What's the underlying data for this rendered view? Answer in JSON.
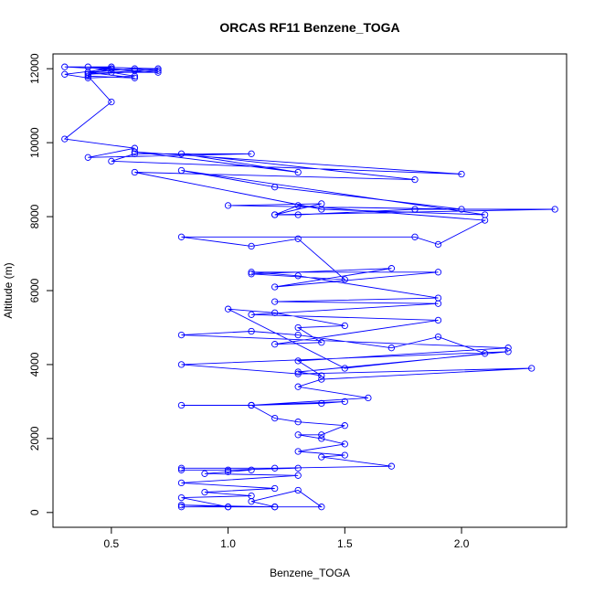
{
  "chart_data": {
    "type": "line",
    "title": "ORCAS RF11 Benzene_TOGA",
    "xlabel": "Benzene_TOGA",
    "ylabel": "Altitude (m)",
    "xlim": [
      0.25,
      2.45
    ],
    "ylim": [
      -400,
      12400
    ],
    "x_ticks": [
      0.5,
      1.0,
      1.5,
      2.0
    ],
    "x_tick_labels": [
      "0.5",
      "1.0",
      "1.5",
      "2.0"
    ],
    "y_ticks": [
      0,
      2000,
      4000,
      6000,
      8000,
      10000,
      12000
    ],
    "y_tick_labels": [
      "0",
      "2000",
      "4000",
      "6000",
      "8000",
      "10000",
      "12000"
    ],
    "grid": false,
    "legend": "none",
    "series_color": "#0000ff",
    "series": [
      {
        "x": [
          0.8,
          1.0,
          1.2,
          1.1,
          1.3,
          1.4,
          1.2,
          0.8,
          1.0,
          0.8,
          1.1,
          0.9,
          1.2,
          0.8,
          1.3,
          0.9,
          1.0,
          1.1,
          0.8,
          1.0,
          1.3,
          0.8,
          1.2,
          1.7,
          1.4,
          1.5,
          1.3,
          1.5,
          1.4,
          1.3,
          1.4,
          1.5,
          1.3,
          1.2,
          1.1,
          1.4,
          1.5,
          1.1,
          0.8,
          1.1,
          1.6,
          1.3,
          1.4,
          2.3,
          1.3,
          0.8,
          2.2,
          1.3,
          1.4,
          1.3,
          2.2,
          0.8,
          1.1,
          1.3,
          1.7,
          1.9,
          2.1,
          1.5,
          1.0,
          1.2,
          1.5,
          1.3,
          1.4,
          1.2,
          1.9,
          1.1,
          1.9,
          1.2,
          1.9,
          1.3,
          1.1,
          1.9,
          1.2,
          1.7,
          1.1,
          1.5,
          1.3,
          1.1,
          0.8,
          1.8,
          1.9,
          2.1,
          1.3,
          1.2,
          2.4,
          1.8,
          1.3,
          1.2,
          1.4,
          1.0,
          2.0,
          1.2,
          0.8,
          2.1,
          1.4,
          0.6,
          1.8,
          0.8,
          1.3,
          0.6,
          2.0,
          0.5,
          0.6,
          1.1,
          0.4,
          0.6,
          0.3,
          0.5,
          0.4,
          0.6,
          0.4,
          0.7,
          0.5,
          0.4,
          0.7,
          0.5,
          0.6,
          0.4,
          0.3,
          0.5,
          0.4,
          0.7,
          0.6,
          0.4,
          0.5,
          0.3,
          0.6
        ],
        "y": [
          150,
          150,
          150,
          300,
          600,
          150,
          150,
          200,
          150,
          400,
          450,
          550,
          650,
          800,
          1000,
          1050,
          1100,
          1150,
          1150,
          1150,
          1200,
          1200,
          1200,
          1250,
          1500,
          1550,
          1650,
          1850,
          2000,
          2100,
          2100,
          2350,
          2450,
          2550,
          2900,
          2950,
          3000,
          2900,
          2900,
          2900,
          3100,
          3400,
          3600,
          3900,
          3750,
          4000,
          4350,
          3800,
          3700,
          4100,
          4450,
          4800,
          4900,
          4800,
          4450,
          4750,
          4300,
          3900,
          5500,
          5400,
          5050,
          5000,
          4600,
          4550,
          5200,
          5350,
          5650,
          5700,
          5800,
          6400,
          6500,
          6500,
          6100,
          6600,
          6450,
          6300,
          7400,
          7200,
          7450,
          7450,
          7250,
          7900,
          8300,
          8050,
          8200,
          8200,
          8050,
          8050,
          8350,
          8300,
          8200,
          8800,
          9250,
          8050,
          8200,
          9200,
          9000,
          9700,
          9200,
          9750,
          9150,
          9500,
          9700,
          9700,
          9600,
          9850,
          10100,
          11100,
          11800,
          11750,
          11900,
          11900,
          12000,
          12050,
          12000,
          11900,
          11800,
          11750,
          11850,
          12000,
          11850,
          11950,
          12000,
          11900,
          12050,
          12050,
          11950
        ]
      }
    ]
  }
}
